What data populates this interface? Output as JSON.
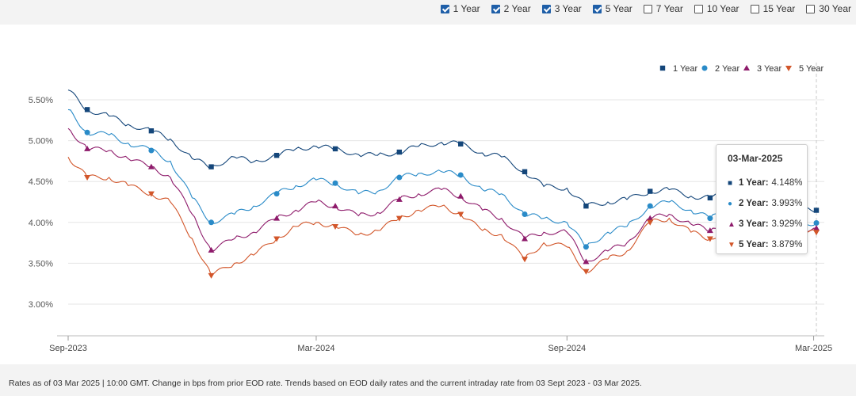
{
  "tenors": [
    {
      "label": "1 Year",
      "checked": true
    },
    {
      "label": "2 Year",
      "checked": true
    },
    {
      "label": "3 Year",
      "checked": true
    },
    {
      "label": "5 Year",
      "checked": true
    },
    {
      "label": "7 Year",
      "checked": false
    },
    {
      "label": "10 Year",
      "checked": false
    },
    {
      "label": "15 Year",
      "checked": false
    },
    {
      "label": "30 Year",
      "checked": false
    }
  ],
  "tooltip": {
    "date": "03-Mar-2025",
    "rows": [
      {
        "name": "1 Year",
        "value": "4.148%",
        "color": "#14467a",
        "symbol": "■"
      },
      {
        "name": "2 Year",
        "value": "3.993%",
        "color": "#2a8bc8",
        "symbol": "●"
      },
      {
        "name": "3 Year",
        "value": "3.929%",
        "color": "#8e1b6b",
        "symbol": "▲"
      },
      {
        "name": "5 Year",
        "value": "3.879%",
        "color": "#d2562a",
        "symbol": "▼"
      }
    ]
  },
  "footer": "Rates as of 03 Mar 2025 | 10:00 GMT. Change in bps from prior EOD rate. Trends based on EOD daily rates and the current intraday rate from 03 Sept 2023 - 03 Mar 2025.",
  "chart_data": {
    "type": "line",
    "title": "",
    "xlabel": "",
    "ylabel": "",
    "x_ticks": [
      "Sep-2023",
      "Mar-2024",
      "Sep-2024",
      "Mar-2025"
    ],
    "y_ticks": [
      "3.00%",
      "3.50%",
      "4.00%",
      "4.50%",
      "5.00%",
      "5.50%"
    ],
    "ylim": [
      3.0,
      5.5
    ],
    "xlim": [
      "2023-09-01",
      "2025-03-03"
    ],
    "grid": true,
    "legend_position": "top-right",
    "x": [
      "2023-09-01",
      "2023-09-15",
      "2023-10-01",
      "2023-10-15",
      "2023-11-01",
      "2023-11-15",
      "2023-12-01",
      "2023-12-15",
      "2024-01-01",
      "2024-01-15",
      "2024-02-01",
      "2024-02-15",
      "2024-03-01",
      "2024-03-15",
      "2024-04-01",
      "2024-04-15",
      "2024-05-01",
      "2024-05-15",
      "2024-06-01",
      "2024-06-15",
      "2024-07-01",
      "2024-07-15",
      "2024-08-01",
      "2024-08-15",
      "2024-09-01",
      "2024-09-15",
      "2024-10-01",
      "2024-10-15",
      "2024-11-01",
      "2024-11-15",
      "2024-12-01",
      "2024-12-15",
      "2025-01-01",
      "2025-01-15",
      "2025-02-01",
      "2025-02-15",
      "2025-03-03"
    ],
    "series": [
      {
        "name": "1 Year",
        "color": "#14467a",
        "marker": "square",
        "values": [
          5.62,
          5.38,
          5.3,
          5.2,
          5.12,
          5.02,
          4.78,
          4.68,
          4.8,
          4.74,
          4.82,
          4.9,
          4.93,
          4.9,
          4.83,
          4.82,
          4.86,
          4.93,
          4.98,
          4.96,
          4.85,
          4.8,
          4.62,
          4.44,
          4.42,
          4.2,
          4.25,
          4.28,
          4.38,
          4.4,
          4.32,
          4.3,
          4.38,
          4.28,
          4.3,
          4.18,
          4.148
        ]
      },
      {
        "name": "2 Year",
        "color": "#2a8bc8",
        "marker": "circle",
        "values": [
          5.38,
          5.1,
          5.07,
          4.97,
          4.88,
          4.75,
          4.3,
          4.0,
          4.1,
          4.2,
          4.35,
          4.45,
          4.52,
          4.48,
          4.35,
          4.38,
          4.55,
          4.6,
          4.62,
          4.58,
          4.4,
          4.35,
          4.1,
          4.05,
          4.0,
          3.7,
          3.88,
          3.95,
          4.2,
          4.25,
          4.15,
          4.05,
          4.18,
          4.1,
          4.08,
          3.98,
          3.993
        ]
      },
      {
        "name": "3 Year",
        "color": "#8e1b6b",
        "marker": "triangle-up",
        "values": [
          5.15,
          4.9,
          4.88,
          4.78,
          4.68,
          4.55,
          4.1,
          3.66,
          3.8,
          3.88,
          4.05,
          4.15,
          4.25,
          4.2,
          4.08,
          4.12,
          4.28,
          4.35,
          4.4,
          4.32,
          4.15,
          4.05,
          3.8,
          3.88,
          3.88,
          3.52,
          3.65,
          3.75,
          4.05,
          4.1,
          3.98,
          3.9,
          4.05,
          3.95,
          3.95,
          3.9,
          3.929
        ]
      },
      {
        "name": "5 Year",
        "color": "#d2562a",
        "marker": "triangle-down",
        "values": [
          4.8,
          4.55,
          4.55,
          4.45,
          4.35,
          4.25,
          3.8,
          3.35,
          3.5,
          3.6,
          3.8,
          3.95,
          4.0,
          3.95,
          3.85,
          3.9,
          4.05,
          4.15,
          4.2,
          4.1,
          3.9,
          3.85,
          3.55,
          3.75,
          3.7,
          3.4,
          3.55,
          3.65,
          4.0,
          4.05,
          3.88,
          3.8,
          3.95,
          3.85,
          3.85,
          3.9,
          3.879
        ]
      }
    ]
  }
}
